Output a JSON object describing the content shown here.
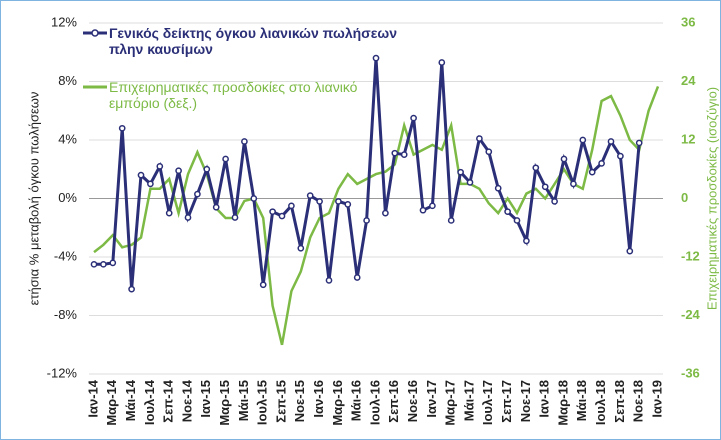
{
  "chart_data": {
    "type": "line",
    "categories": [
      "Ιαν-14",
      null,
      "Μαρ-14",
      null,
      "Μάι-14",
      null,
      "Ιουλ-14",
      null,
      "Σεπ-14",
      null,
      "Νοε-14",
      null,
      "Ιαν-15",
      null,
      "Μαρ-15",
      null,
      "Μάι-15",
      null,
      "Ιουλ-15",
      null,
      "Σεπ-15",
      null,
      "Νοε-15",
      null,
      "Ιαν-16",
      null,
      "Μαρ-16",
      null,
      "Μάι-16",
      null,
      "Ιουλ-16",
      null,
      "Σεπ-16",
      null,
      "Νοε-16",
      null,
      "Ιαν-17",
      null,
      "Μαρ-17",
      null,
      "Μάι-17",
      null,
      "Ιουλ-17",
      null,
      "Σεπ-17",
      null,
      "Νοε-17",
      null,
      "Ιαν-18",
      null,
      "Μαρ-18",
      null,
      "Μάι-18",
      null,
      "Ιουλ-18",
      null,
      "Σεπ-18",
      null,
      "Νοε-18",
      null,
      "Ιαν-19"
    ],
    "series": [
      {
        "name": "Γενικός δείκτης όγκου λιανικών πωλήσεων πλην καυσίμων",
        "color": "#2b2f77",
        "markers": true,
        "values": [
          -4.5,
          -4.5,
          -4.4,
          4.8,
          -6.2,
          1.6,
          1.0,
          2.2,
          -1.0,
          1.9,
          -1.3,
          0.3,
          2.0,
          -0.6,
          2.7,
          -1.3,
          3.9,
          0.0,
          -5.9,
          -0.9,
          -1.2,
          -0.5,
          -3.4,
          0.2,
          -0.2,
          -5.6,
          -0.2,
          -0.4,
          -5.4,
          -1.5,
          9.6,
          -1.0,
          3.1,
          3.0,
          5.5,
          -0.8,
          -0.5,
          9.3,
          -1.5,
          1.8,
          1.1,
          4.1,
          3.2,
          0.7,
          -0.9,
          -1.5,
          -2.9,
          2.1,
          0.8,
          -0.2,
          2.7,
          1.0,
          4.0,
          1.8,
          2.4,
          3.9,
          2.9,
          -3.6,
          3.8,
          null,
          null
        ]
      },
      {
        "name": "Επιχειρηματικές προσδοκίες στο λιανικό εμπόριο (δεξ.)",
        "color": "#7dba45",
        "axis": "y2",
        "markers": false,
        "values": [
          -11,
          -9.5,
          -7.5,
          -10,
          -9.5,
          -8,
          2,
          2,
          4,
          -3,
          5,
          9.5,
          5,
          -2,
          -4,
          -4,
          -0.5,
          0,
          -4,
          -22,
          -30,
          -19,
          -15,
          -8,
          -4,
          -3,
          2,
          5,
          3,
          4,
          5,
          5.5,
          7,
          15,
          9,
          10,
          11,
          10,
          15,
          3,
          3,
          2,
          -1,
          -3,
          0,
          -3,
          1,
          2,
          0,
          3,
          6,
          3,
          2,
          10,
          20,
          21,
          17,
          12,
          10,
          18,
          23
        ]
      }
    ],
    "y_label": "ετήσια % μεταβολή όγκου πωλήσεων",
    "y2_label": "Επιχειρηματικές προσδοκίες (ισοζύγιο)",
    "ylim": [
      -12,
      12
    ],
    "yticks": [
      {
        "value": -12,
        "label": "-12%"
      },
      {
        "value": -8,
        "label": "-8%"
      },
      {
        "value": -4,
        "label": "-4%"
      },
      {
        "value": 0,
        "label": "0%"
      },
      {
        "value": 4,
        "label": "4%"
      },
      {
        "value": 8,
        "label": "8%"
      },
      {
        "value": 12,
        "label": "12%"
      }
    ],
    "y2lim": [
      -36,
      36
    ],
    "y2ticks": [
      -36,
      -24,
      -12,
      0,
      12,
      24,
      36
    ],
    "grid": true
  }
}
